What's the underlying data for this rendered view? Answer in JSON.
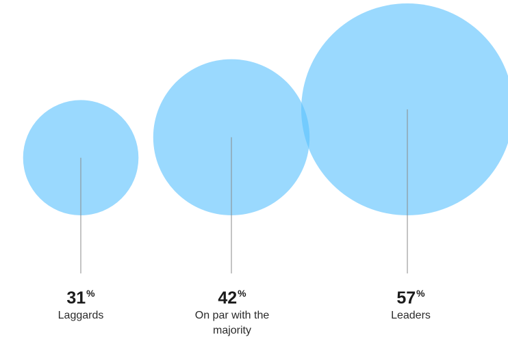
{
  "chart_data": {
    "type": "bubble",
    "categories": [
      "Laggards",
      "On par with\nthe majority",
      "Leaders"
    ],
    "values": [
      31,
      42,
      57
    ],
    "unit": "%",
    "colors": {
      "bubble_fill": "#5cc2fd",
      "bubble_opacity": 0.62,
      "leader_line": "#8a8a8a",
      "text": "#1b1b1b"
    },
    "grid": false,
    "legend": "none"
  },
  "labels": [
    {
      "value": "31",
      "unit": "%",
      "category": "Laggards"
    },
    {
      "value": "42",
      "unit": "%",
      "category": "On par with the majority"
    },
    {
      "value": "57",
      "unit": "%",
      "category": "Leaders"
    }
  ]
}
